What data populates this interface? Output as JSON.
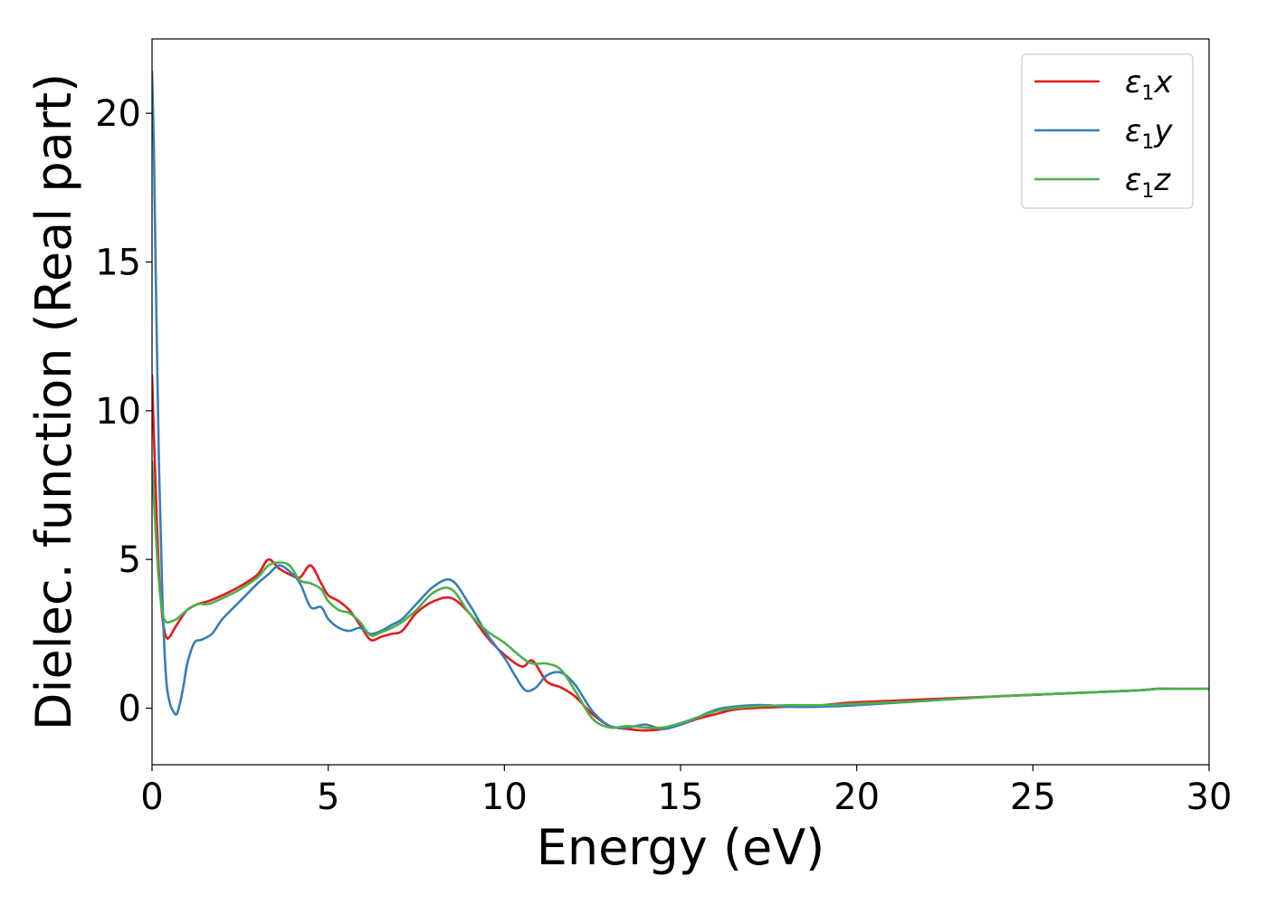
{
  "chart_data": {
    "type": "line",
    "xlabel": "Energy (eV)",
    "ylabel": "Dielec. function (Real part)",
    "xlim": [
      0,
      30
    ],
    "ylim": [
      -1.9,
      22.5
    ],
    "xticks": [
      0,
      5,
      10,
      15,
      20,
      25,
      30
    ],
    "yticks": [
      0,
      5,
      10,
      15,
      20
    ],
    "xtick_labels": [
      "0",
      "5",
      "10",
      "15",
      "20",
      "25",
      "30"
    ],
    "ytick_labels": [
      "0",
      "5",
      "10",
      "15",
      "20"
    ],
    "grid": false,
    "legend_position": "top-right",
    "series": [
      {
        "name": "ε1x",
        "legend_base": "ε",
        "legend_sub": "1",
        "legend_tail": "x",
        "color": "#e41a1c",
        "x": [
          0,
          0.1,
          0.2,
          0.3,
          0.4,
          0.5,
          0.7,
          1.0,
          1.3,
          1.6,
          2.0,
          2.5,
          3.0,
          3.3,
          3.6,
          3.9,
          4.2,
          4.5,
          4.8,
          5.0,
          5.3,
          5.6,
          5.9,
          6.2,
          6.5,
          6.8,
          7.1,
          7.5,
          8.0,
          8.5,
          9.0,
          9.5,
          10.0,
          10.5,
          10.8,
          11.2,
          11.6,
          12.0,
          12.5,
          13.0,
          13.5,
          14.0,
          14.5,
          15.0,
          15.5,
          16.0,
          16.5,
          17.0,
          18.0,
          19.0,
          20.0,
          22.0,
          24.0,
          26.0,
          28.0,
          28.5,
          29.0,
          30.0
        ],
        "y": [
          11.2,
          7.5,
          4.5,
          3.0,
          2.4,
          2.4,
          2.8,
          3.3,
          3.5,
          3.6,
          3.8,
          4.1,
          4.5,
          5.0,
          4.7,
          4.5,
          4.4,
          4.8,
          4.2,
          3.8,
          3.6,
          3.3,
          2.8,
          2.3,
          2.4,
          2.5,
          2.6,
          3.2,
          3.6,
          3.7,
          3.2,
          2.4,
          1.8,
          1.4,
          1.6,
          0.9,
          0.7,
          0.4,
          -0.2,
          -0.6,
          -0.7,
          -0.75,
          -0.7,
          -0.55,
          -0.35,
          -0.2,
          -0.05,
          0.0,
          0.05,
          0.1,
          0.2,
          0.3,
          0.4,
          0.5,
          0.6,
          0.65,
          0.65,
          0.65
        ]
      },
      {
        "name": "ε1y",
        "legend_base": "ε",
        "legend_sub": "1",
        "legend_tail": "y",
        "color": "#377eb8",
        "x": [
          0,
          0.05,
          0.1,
          0.2,
          0.3,
          0.4,
          0.5,
          0.6,
          0.7,
          0.8,
          0.9,
          1.0,
          1.2,
          1.4,
          1.7,
          2.0,
          2.5,
          3.0,
          3.3,
          3.6,
          3.9,
          4.2,
          4.5,
          4.8,
          5.0,
          5.3,
          5.6,
          5.9,
          6.2,
          6.5,
          6.8,
          7.1,
          7.5,
          8.0,
          8.5,
          9.0,
          9.5,
          10.0,
          10.3,
          10.6,
          10.9,
          11.2,
          11.6,
          12.0,
          12.5,
          13.0,
          13.5,
          14.0,
          14.5,
          15.0,
          15.5,
          16.0,
          16.5,
          17.0,
          17.5,
          18.0,
          19.0,
          20.0,
          22.0,
          24.0,
          26.0,
          28.0,
          28.5,
          29.0,
          30.0
        ],
        "y": [
          21.4,
          19.0,
          15.0,
          8.0,
          3.5,
          1.0,
          0.2,
          -0.1,
          -0.2,
          0.2,
          0.8,
          1.5,
          2.2,
          2.3,
          2.5,
          3.0,
          3.6,
          4.2,
          4.5,
          4.8,
          4.6,
          4.2,
          3.4,
          3.4,
          3.0,
          2.7,
          2.6,
          2.7,
          2.5,
          2.6,
          2.8,
          3.0,
          3.5,
          4.1,
          4.3,
          3.5,
          2.5,
          1.7,
          1.1,
          0.6,
          0.7,
          1.1,
          1.2,
          0.8,
          -0.1,
          -0.6,
          -0.65,
          -0.55,
          -0.7,
          -0.55,
          -0.3,
          -0.05,
          0.05,
          0.1,
          0.1,
          0.05,
          0.05,
          0.1,
          0.25,
          0.4,
          0.5,
          0.6,
          0.65,
          0.65,
          0.65
        ]
      },
      {
        "name": "ε1z",
        "legend_base": "ε",
        "legend_sub": "1",
        "legend_tail": "z",
        "color": "#4daf4a",
        "x": [
          0,
          0.1,
          0.2,
          0.3,
          0.4,
          0.5,
          0.7,
          1.0,
          1.3,
          1.6,
          2.0,
          2.5,
          3.0,
          3.3,
          3.6,
          3.9,
          4.2,
          4.5,
          4.8,
          5.0,
          5.3,
          5.6,
          5.9,
          6.2,
          6.5,
          6.8,
          7.1,
          7.5,
          8.0,
          8.5,
          9.0,
          9.5,
          10.0,
          10.5,
          10.8,
          11.2,
          11.6,
          12.0,
          12.5,
          13.0,
          13.5,
          14.0,
          14.5,
          15.0,
          15.5,
          16.0,
          16.5,
          17.0,
          18.0,
          19.0,
          20.0,
          22.0,
          24.0,
          26.0,
          28.0,
          28.5,
          29.0,
          30.0
        ],
        "y": [
          8.3,
          6.0,
          4.2,
          3.2,
          2.9,
          2.9,
          3.0,
          3.3,
          3.5,
          3.5,
          3.7,
          4.0,
          4.4,
          4.8,
          4.9,
          4.8,
          4.3,
          4.2,
          4.0,
          3.6,
          3.3,
          3.2,
          2.9,
          2.45,
          2.55,
          2.7,
          2.9,
          3.3,
          3.9,
          4.0,
          3.2,
          2.6,
          2.2,
          1.7,
          1.5,
          1.5,
          1.3,
          0.6,
          -0.35,
          -0.65,
          -0.6,
          -0.65,
          -0.65,
          -0.5,
          -0.3,
          -0.1,
          0.0,
          0.05,
          0.1,
          0.1,
          0.15,
          0.25,
          0.4,
          0.5,
          0.6,
          0.65,
          0.65,
          0.65
        ]
      }
    ]
  }
}
